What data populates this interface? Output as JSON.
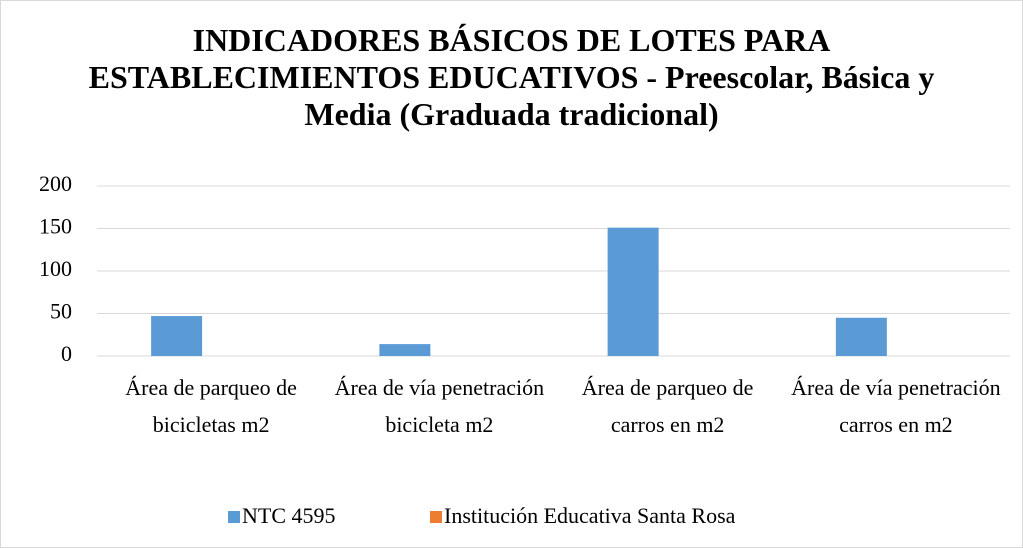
{
  "chart_data": {
    "type": "bar",
    "title": "INDICADORES BÁSICOS DE LOTES PARA ESTABLECIMIENTOS EDUCATIVOS - Preescolar, Básica y Media (Graduada tradicional)",
    "categories": [
      "Área de parqueo de bicicletas m2",
      "Área de vía penetración bicicleta m2",
      "Área de parqueo de carros en m2",
      "Área de vía penetración carros en m2"
    ],
    "series": [
      {
        "name": "NTC 4595",
        "color": "#5b9bd5",
        "values": [
          47,
          14,
          151,
          45
        ]
      },
      {
        "name": "Institución Educativa Santa Rosa",
        "color": "#ed7d31",
        "values": [
          0,
          0,
          0,
          0
        ]
      }
    ],
    "ylim": [
      0,
      200
    ],
    "yticks": [
      0,
      50,
      100,
      150,
      200
    ],
    "grid": true,
    "legend": "bottom"
  }
}
